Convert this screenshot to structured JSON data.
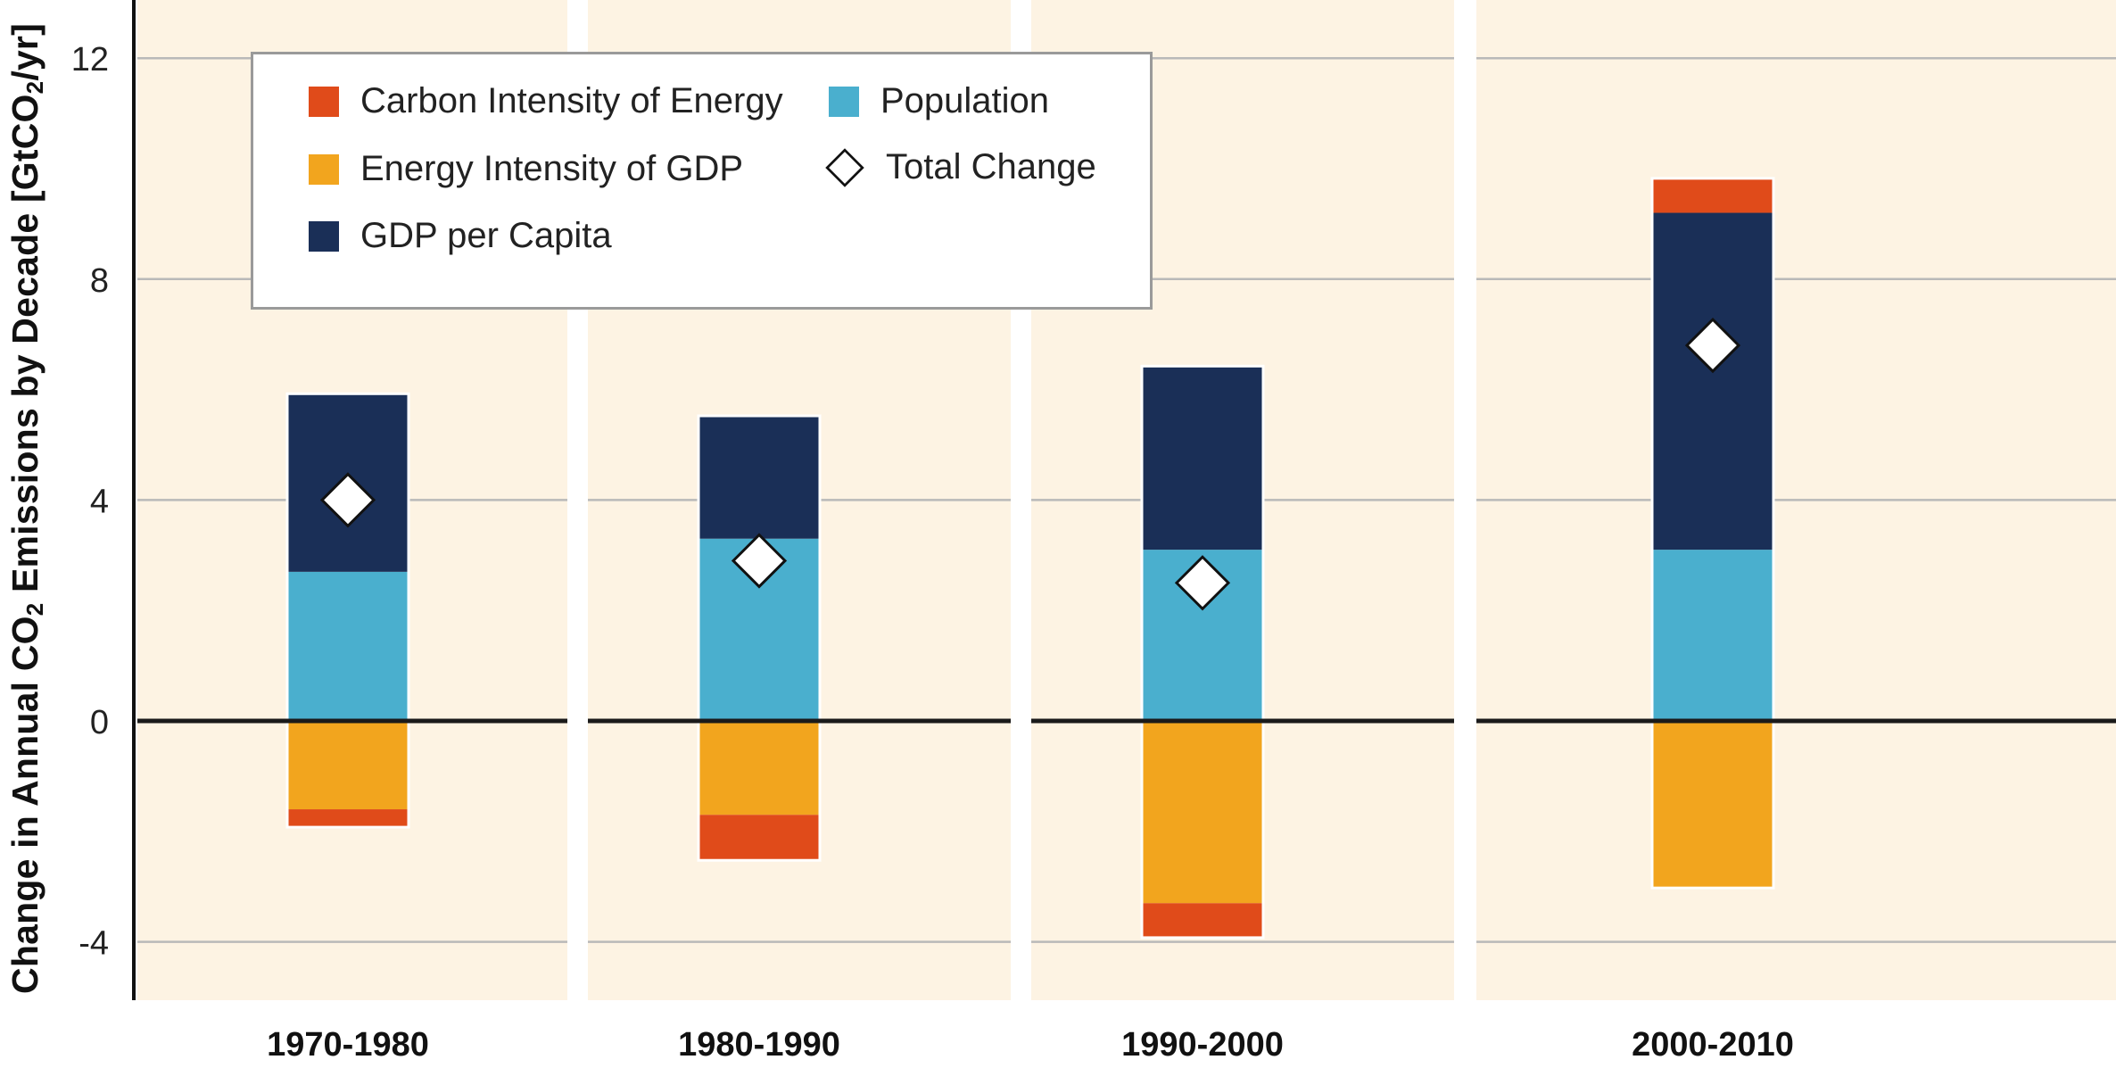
{
  "chart_data": {
    "type": "bar",
    "stacked": true,
    "title": "",
    "xlabel": "",
    "ylabel_parts": [
      "Change in Annual CO",
      "2",
      " Emissions by Decade [GtCO",
      "2",
      "/yr]"
    ],
    "ylim": [
      -5,
      13
    ],
    "yticks": [
      -4,
      0,
      4,
      8,
      12
    ],
    "ytick_labels": [
      "-4",
      "0",
      "4",
      "8",
      "12"
    ],
    "grid": true,
    "legend_position": "top-left",
    "categories": [
      "1970-1980",
      "1980-1990",
      "1990-2000",
      "2000-2010"
    ],
    "series": [
      {
        "name": "Carbon Intensity of Energy",
        "color": "#e04b1a",
        "values": [
          -0.3,
          -0.8,
          -0.6,
          0.6
        ]
      },
      {
        "name": "Energy Intensity of GDP",
        "color": "#f2a51e",
        "values": [
          -1.6,
          -1.7,
          -3.3,
          -3.0
        ]
      },
      {
        "name": "GDP per Capita",
        "color": "#1a2f57",
        "values": [
          3.2,
          2.2,
          3.3,
          6.1
        ]
      },
      {
        "name": "Population",
        "color": "#4aafce",
        "values": [
          2.7,
          3.3,
          3.1,
          3.1
        ]
      }
    ],
    "total_change": {
      "name": "Total Change",
      "values": [
        4.0,
        2.9,
        2.5,
        6.8
      ]
    },
    "legend": [
      {
        "label": "Carbon Intensity of Energy",
        "color": "#e04b1a",
        "kind": "square"
      },
      {
        "label": "Energy Intensity of GDP",
        "color": "#f2a51e",
        "kind": "square"
      },
      {
        "label": "GDP per Capita",
        "color": "#1a2f57",
        "kind": "square"
      },
      {
        "label": "Population",
        "color": "#4aafce",
        "kind": "square"
      },
      {
        "label": "Total Change",
        "color": "#ffffff",
        "kind": "diamond"
      }
    ],
    "colors": {
      "panel": "#fdf3e3",
      "gridline": "#b9b9b9",
      "zero_line": "#1a1a1a"
    }
  }
}
